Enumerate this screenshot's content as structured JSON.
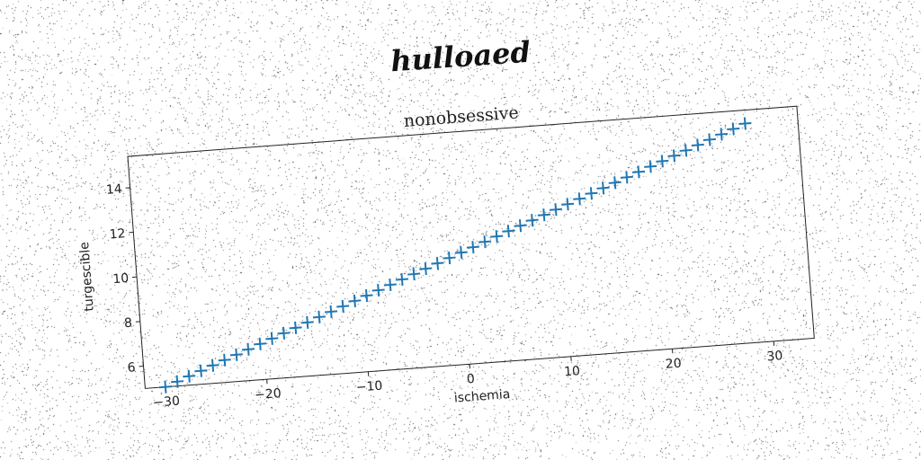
{
  "header": {
    "signature_text": "hulloaed"
  },
  "chart_data": {
    "type": "scatter",
    "title": "nonobsessive",
    "xlabel": "ischemia",
    "ylabel": "turgescible",
    "xlim": [
      -32,
      34
    ],
    "ylim": [
      5,
      15.4
    ],
    "xticks": [
      -30,
      -20,
      -10,
      0,
      10,
      20,
      30
    ],
    "xtick_labels": [
      "−30",
      "−20",
      "−10",
      "0",
      "10",
      "20",
      "30"
    ],
    "yticks": [
      6,
      8,
      10,
      12,
      14
    ],
    "yticks_labels": [
      "6",
      "8",
      "10",
      "12",
      "14"
    ],
    "marker": "+",
    "color": "#1f77b4",
    "grid": false,
    "series": [
      {
        "x": [
          -30.0,
          -28.8,
          -27.6,
          -26.4,
          -25.2,
          -24.0,
          -22.8,
          -21.6,
          -20.4,
          -19.2,
          -18.0,
          -16.8,
          -15.6,
          -14.4,
          -13.2,
          -12.0,
          -10.8,
          -9.6,
          -8.4,
          -7.2,
          -6.0,
          -4.8,
          -3.6,
          -2.4,
          -1.2,
          0.0,
          1.2,
          2.4,
          3.6,
          4.8,
          6.0,
          7.2,
          8.4,
          9.6,
          10.8,
          12.0,
          13.2,
          14.4,
          15.6,
          16.8,
          18.0,
          19.2,
          20.4,
          21.6,
          22.8,
          24.0,
          25.2,
          26.4,
          27.6,
          28.8
        ],
        "y": [
          5.0,
          5.2,
          5.4,
          5.6,
          5.8,
          6.0,
          6.2,
          6.4,
          6.6,
          6.8,
          7.0,
          7.2,
          7.4,
          7.6,
          7.8,
          8.0,
          8.2,
          8.4,
          8.6,
          8.8,
          9.0,
          9.2,
          9.4,
          9.6,
          9.8,
          10.0,
          10.2,
          10.4,
          10.6,
          10.8,
          11.0,
          11.2,
          11.4,
          11.6,
          11.8,
          12.0,
          12.2,
          12.4,
          12.6,
          12.8,
          13.0,
          13.2,
          13.4,
          13.6,
          13.8,
          14.0,
          14.2,
          14.4,
          14.6,
          14.8
        ]
      }
    ]
  }
}
